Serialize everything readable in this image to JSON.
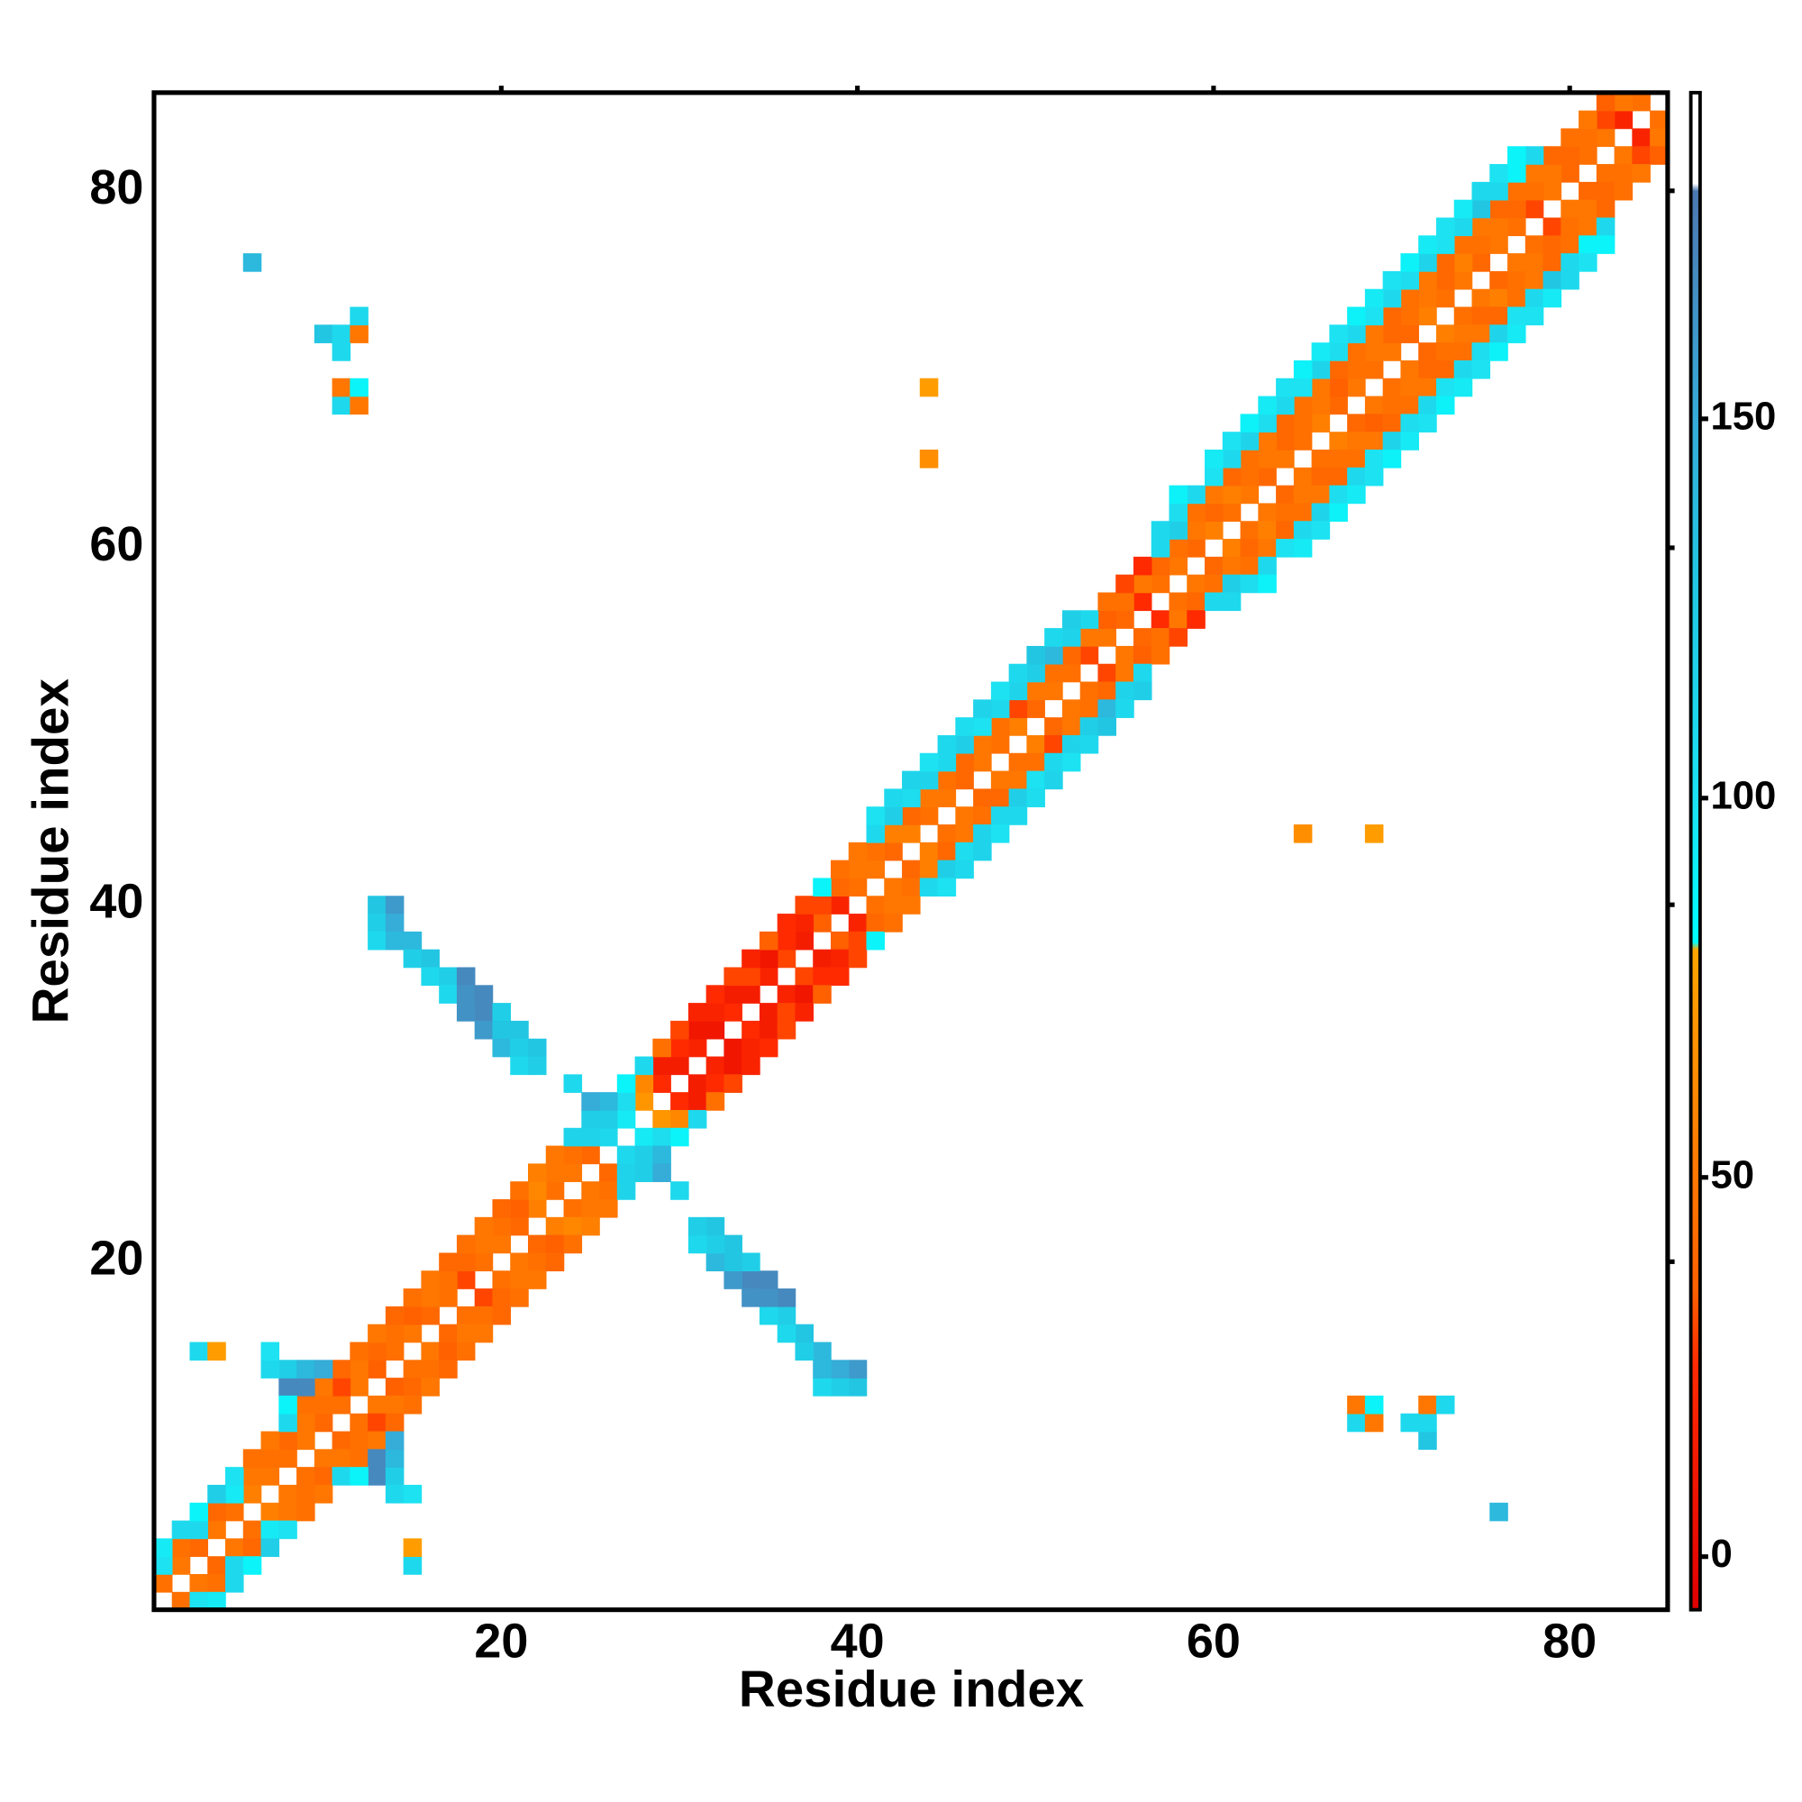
{
  "chart_data": {
    "type": "heatmap",
    "xlabel": "Residue index",
    "ylabel": "Residue index",
    "xlim": [
      0.5,
      85.5
    ],
    "ylim": [
      0.5,
      85.5
    ],
    "xticks": [
      20,
      40,
      60,
      80
    ],
    "yticks": [
      20,
      40,
      60,
      80
    ],
    "symmetric": true,
    "clim": [
      -7,
      193
    ],
    "cticks": [
      0,
      50,
      100,
      150
    ],
    "colorscale": [
      [
        -7,
        "#e00000"
      ],
      [
        25,
        "#ff2a00"
      ],
      [
        35,
        "#ff6000"
      ],
      [
        55,
        "#ff7f00"
      ],
      [
        80,
        "#ffa500"
      ],
      [
        81,
        "#00ffff"
      ],
      [
        100,
        "#1ce2f2"
      ],
      [
        130,
        "#22c6e2"
      ],
      [
        150,
        "#36acd8"
      ],
      [
        175,
        "#4a80b8"
      ],
      [
        180,
        "#4a78b0"
      ],
      [
        181,
        "#ffffff"
      ],
      [
        193,
        "#ffffff"
      ]
    ],
    "cells": [
      [
        1,
        2,
        45
      ],
      [
        2,
        3,
        50
      ],
      [
        3,
        4,
        40
      ],
      [
        4,
        5,
        50
      ],
      [
        5,
        6,
        45
      ],
      [
        6,
        7,
        55
      ],
      [
        7,
        8,
        50
      ],
      [
        8,
        9,
        45
      ],
      [
        9,
        10,
        50
      ],
      [
        10,
        11,
        40
      ],
      [
        11,
        12,
        45
      ],
      [
        12,
        13,
        50
      ],
      [
        13,
        14,
        35
      ],
      [
        14,
        15,
        45
      ],
      [
        15,
        16,
        50
      ],
      [
        16,
        17,
        40
      ],
      [
        17,
        18,
        45
      ],
      [
        18,
        19,
        30
      ],
      [
        19,
        20,
        45
      ],
      [
        20,
        21,
        50
      ],
      [
        21,
        22,
        40
      ],
      [
        22,
        23,
        55
      ],
      [
        23,
        24,
        45
      ],
      [
        24,
        25,
        50
      ],
      [
        25,
        26,
        40
      ],
      [
        26,
        27,
        110
      ],
      [
        27,
        28,
        95
      ],
      [
        28,
        29,
        70
      ],
      [
        29,
        30,
        25
      ],
      [
        30,
        31,
        15
      ],
      [
        31,
        32,
        20
      ],
      [
        32,
        33,
        10
      ],
      [
        33,
        34,
        25
      ],
      [
        34,
        35,
        15
      ],
      [
        35,
        36,
        20
      ],
      [
        36,
        37,
        30
      ],
      [
        37,
        38,
        15
      ],
      [
        38,
        39,
        35
      ],
      [
        39,
        40,
        20
      ],
      [
        40,
        41,
        45
      ],
      [
        41,
        42,
        50
      ],
      [
        42,
        43,
        40
      ],
      [
        43,
        44,
        55
      ],
      [
        44,
        45,
        45
      ],
      [
        45,
        46,
        50
      ],
      [
        46,
        47,
        40
      ],
      [
        47,
        48,
        50
      ],
      [
        48,
        49,
        45
      ],
      [
        49,
        50,
        55
      ],
      [
        50,
        51,
        40
      ],
      [
        51,
        52,
        50
      ],
      [
        52,
        53,
        45
      ],
      [
        53,
        54,
        30
      ],
      [
        54,
        55,
        50
      ],
      [
        55,
        56,
        40
      ],
      [
        56,
        57,
        25
      ],
      [
        57,
        58,
        45
      ],
      [
        58,
        59,
        50
      ],
      [
        59,
        60,
        40
      ],
      [
        60,
        61,
        55
      ],
      [
        61,
        62,
        45
      ],
      [
        62,
        63,
        50
      ],
      [
        63,
        64,
        40
      ],
      [
        64,
        65,
        50
      ],
      [
        65,
        66,
        45
      ],
      [
        66,
        67,
        55
      ],
      [
        67,
        68,
        40
      ],
      [
        68,
        69,
        50
      ],
      [
        69,
        70,
        45
      ],
      [
        70,
        71,
        50
      ],
      [
        71,
        72,
        40
      ],
      [
        72,
        73,
        55
      ],
      [
        73,
        74,
        45
      ],
      [
        74,
        75,
        50
      ],
      [
        75,
        76,
        40
      ],
      [
        76,
        77,
        50
      ],
      [
        77,
        78,
        45
      ],
      [
        78,
        79,
        30
      ],
      [
        79,
        80,
        50
      ],
      [
        80,
        81,
        40
      ],
      [
        81,
        82,
        45
      ],
      [
        82,
        83,
        50
      ],
      [
        83,
        84,
        20
      ],
      [
        84,
        85,
        45
      ],
      [
        1,
        3,
        100
      ],
      [
        2,
        4,
        45
      ],
      [
        3,
        5,
        110
      ],
      [
        4,
        6,
        40
      ],
      [
        5,
        7,
        95
      ],
      [
        6,
        8,
        50
      ],
      [
        7,
        9,
        45
      ],
      [
        8,
        10,
        40
      ],
      [
        9,
        11,
        50
      ],
      [
        10,
        12,
        45
      ],
      [
        11,
        13,
        30
      ],
      [
        12,
        14,
        50
      ],
      [
        13,
        15,
        40
      ],
      [
        14,
        16,
        45
      ],
      [
        15,
        17,
        35
      ],
      [
        16,
        18,
        50
      ],
      [
        17,
        19,
        45
      ],
      [
        18,
        20,
        40
      ],
      [
        19,
        21,
        50
      ],
      [
        20,
        22,
        45
      ],
      [
        21,
        23,
        35
      ],
      [
        22,
        24,
        60
      ],
      [
        23,
        25,
        50
      ],
      [
        24,
        26,
        45
      ],
      [
        25,
        27,
        115
      ],
      [
        26,
        28,
        120
      ],
      [
        27,
        29,
        105
      ],
      [
        28,
        30,
        60
      ],
      [
        29,
        31,
        15
      ],
      [
        30,
        32,
        25
      ],
      [
        31,
        33,
        10
      ],
      [
        32,
        34,
        20
      ],
      [
        33,
        35,
        15
      ],
      [
        34,
        36,
        30
      ],
      [
        35,
        37,
        10
      ],
      [
        36,
        38,
        25
      ],
      [
        37,
        39,
        20
      ],
      [
        38,
        40,
        30
      ],
      [
        39,
        41,
        40
      ],
      [
        40,
        42,
        50
      ],
      [
        41,
        43,
        45
      ],
      [
        42,
        44,
        55
      ],
      [
        43,
        45,
        40
      ],
      [
        44,
        46,
        50
      ],
      [
        45,
        47,
        45
      ],
      [
        46,
        48,
        40
      ],
      [
        47,
        49,
        50
      ],
      [
        48,
        50,
        45
      ],
      [
        49,
        51,
        30
      ],
      [
        50,
        52,
        50
      ],
      [
        51,
        53,
        45
      ],
      [
        52,
        54,
        40
      ],
      [
        53,
        55,
        50
      ],
      [
        54,
        56,
        35
      ],
      [
        55,
        57,
        45
      ],
      [
        56,
        58,
        50
      ],
      [
        57,
        59,
        40
      ],
      [
        58,
        60,
        45
      ],
      [
        59,
        61,
        50
      ],
      [
        60,
        62,
        40
      ],
      [
        61,
        63,
        55
      ],
      [
        62,
        64,
        45
      ],
      [
        63,
        65,
        50
      ],
      [
        64,
        66,
        40
      ],
      [
        65,
        67,
        45
      ],
      [
        66,
        68,
        50
      ],
      [
        67,
        69,
        35
      ],
      [
        68,
        70,
        45
      ],
      [
        69,
        71,
        50
      ],
      [
        70,
        72,
        40
      ],
      [
        71,
        73,
        45
      ],
      [
        72,
        74,
        50
      ],
      [
        73,
        75,
        40
      ],
      [
        74,
        76,
        55
      ],
      [
        75,
        77,
        45
      ],
      [
        76,
        78,
        50
      ],
      [
        77,
        79,
        40
      ],
      [
        78,
        80,
        45
      ],
      [
        79,
        81,
        50
      ],
      [
        80,
        82,
        40
      ],
      [
        81,
        83,
        45
      ],
      [
        82,
        84,
        30
      ],
      [
        83,
        85,
        50
      ],
      [
        1,
        4,
        95
      ],
      [
        2,
        5,
        110
      ],
      [
        3,
        6,
        88
      ],
      [
        4,
        7,
        120
      ],
      [
        5,
        8,
        100
      ],
      [
        6,
        9,
        45
      ],
      [
        7,
        10,
        50
      ],
      [
        8,
        11,
        110
      ],
      [
        9,
        12,
        45
      ],
      [
        10,
        13,
        50
      ],
      [
        11,
        14,
        40
      ],
      [
        12,
        15,
        45
      ],
      [
        13,
        16,
        50
      ],
      [
        14,
        17,
        40
      ],
      [
        15,
        18,
        45
      ],
      [
        16,
        19,
        50
      ],
      [
        17,
        20,
        40
      ],
      [
        18,
        21,
        45
      ],
      [
        19,
        22,
        50
      ],
      [
        20,
        23,
        40
      ],
      [
        21,
        24,
        45
      ],
      [
        22,
        25,
        55
      ],
      [
        23,
        26,
        50
      ],
      [
        24,
        27,
        115
      ],
      [
        25,
        28,
        120
      ],
      [
        26,
        29,
        140
      ],
      [
        27,
        30,
        88
      ],
      [
        28,
        31,
        110
      ],
      [
        29,
        32,
        45
      ],
      [
        30,
        33,
        30
      ],
      [
        31,
        34,
        20
      ],
      [
        32,
        35,
        25
      ],
      [
        33,
        36,
        30
      ],
      [
        34,
        37,
        20
      ],
      [
        35,
        38,
        35
      ],
      [
        36,
        39,
        25
      ],
      [
        37,
        40,
        30
      ],
      [
        38,
        41,
        88
      ],
      [
        39,
        42,
        45
      ],
      [
        40,
        43,
        50
      ],
      [
        41,
        44,
        110
      ],
      [
        42,
        45,
        120
      ],
      [
        43,
        46,
        105
      ],
      [
        44,
        47,
        115
      ],
      [
        45,
        48,
        110
      ],
      [
        46,
        49,
        120
      ],
      [
        47,
        50,
        100
      ],
      [
        48,
        51,
        110
      ],
      [
        49,
        52,
        115
      ],
      [
        50,
        53,
        120
      ],
      [
        51,
        54,
        140
      ],
      [
        52,
        55,
        115
      ],
      [
        53,
        56,
        110
      ],
      [
        54,
        57,
        45
      ],
      [
        55,
        58,
        30
      ],
      [
        56,
        59,
        25
      ],
      [
        57,
        60,
        110
      ],
      [
        58,
        61,
        120
      ],
      [
        59,
        62,
        45
      ],
      [
        60,
        63,
        50
      ],
      [
        61,
        64,
        40
      ],
      [
        62,
        65,
        45
      ],
      [
        63,
        66,
        50
      ],
      [
        64,
        67,
        40
      ],
      [
        65,
        68,
        45
      ],
      [
        66,
        69,
        50
      ],
      [
        67,
        70,
        40
      ],
      [
        68,
        71,
        45
      ],
      [
        69,
        72,
        50
      ],
      [
        70,
        73,
        40
      ],
      [
        71,
        74,
        45
      ],
      [
        72,
        75,
        50
      ],
      [
        73,
        76,
        40
      ],
      [
        74,
        77,
        45
      ],
      [
        75,
        78,
        50
      ],
      [
        76,
        79,
        40
      ],
      [
        77,
        80,
        45
      ],
      [
        78,
        81,
        50
      ],
      [
        79,
        82,
        40
      ],
      [
        80,
        83,
        45
      ],
      [
        81,
        84,
        50
      ],
      [
        82,
        85,
        35
      ],
      [
        41,
        45,
        100
      ],
      [
        42,
        46,
        110
      ],
      [
        43,
        47,
        115
      ],
      [
        44,
        48,
        100
      ],
      [
        45,
        49,
        110
      ],
      [
        46,
        50,
        105
      ],
      [
        47,
        51,
        115
      ],
      [
        48,
        52,
        100
      ],
      [
        49,
        53,
        110
      ],
      [
        50,
        54,
        130
      ],
      [
        51,
        55,
        110
      ],
      [
        52,
        56,
        120
      ],
      [
        57,
        61,
        110
      ],
      [
        58,
        62,
        105
      ],
      [
        59,
        63,
        110
      ],
      [
        60,
        64,
        100
      ],
      [
        61,
        65,
        110
      ],
      [
        62,
        66,
        115
      ],
      [
        63,
        67,
        105
      ],
      [
        64,
        68,
        110
      ],
      [
        65,
        69,
        100
      ],
      [
        66,
        70,
        115
      ],
      [
        67,
        71,
        105
      ],
      [
        68,
        72,
        110
      ],
      [
        69,
        73,
        100
      ],
      [
        70,
        74,
        110
      ],
      [
        71,
        75,
        105
      ],
      [
        72,
        76,
        115
      ],
      [
        73,
        77,
        100
      ],
      [
        74,
        78,
        110
      ],
      [
        75,
        79,
        130
      ],
      [
        76,
        80,
        110
      ],
      [
        77,
        81,
        88
      ],
      [
        78,
        82,
        110
      ],
      [
        58,
        63,
        90
      ],
      [
        60,
        65,
        95
      ],
      [
        61,
        66,
        100
      ],
      [
        62,
        67,
        90
      ],
      [
        63,
        68,
        95
      ],
      [
        64,
        69,
        100
      ],
      [
        65,
        70,
        90
      ],
      [
        66,
        71,
        95
      ],
      [
        67,
        72,
        100
      ],
      [
        68,
        73,
        90
      ],
      [
        69,
        74,
        95
      ],
      [
        70,
        75,
        100
      ],
      [
        71,
        76,
        90
      ],
      [
        72,
        77,
        95
      ],
      [
        73,
        78,
        100
      ],
      [
        74,
        79,
        95
      ],
      [
        75,
        80,
        110
      ],
      [
        76,
        81,
        100
      ],
      [
        77,
        82,
        88
      ],
      [
        8,
        13,
        170
      ],
      [
        9,
        13,
        170
      ],
      [
        8,
        14,
        120
      ],
      [
        9,
        14,
        140
      ],
      [
        10,
        14,
        150
      ],
      [
        7,
        14,
        110
      ],
      [
        8,
        12,
        88
      ],
      [
        7,
        15,
        100
      ],
      [
        13,
        40,
        130
      ],
      [
        14,
        40,
        160
      ],
      [
        13,
        39,
        120
      ],
      [
        14,
        39,
        150
      ],
      [
        13,
        38,
        110
      ],
      [
        14,
        38,
        140
      ],
      [
        15,
        38,
        140
      ],
      [
        15,
        37,
        120
      ],
      [
        16,
        37,
        130
      ],
      [
        16,
        36,
        110
      ],
      [
        17,
        36,
        120
      ],
      [
        18,
        36,
        170
      ],
      [
        17,
        35,
        110
      ],
      [
        18,
        35,
        165
      ],
      [
        19,
        35,
        170
      ],
      [
        19,
        34,
        170
      ],
      [
        20,
        34,
        120
      ],
      [
        18,
        34,
        165
      ],
      [
        19,
        33,
        160
      ],
      [
        20,
        33,
        130
      ],
      [
        21,
        33,
        130
      ],
      [
        20,
        32,
        140
      ],
      [
        21,
        32,
        120
      ],
      [
        22,
        32,
        130
      ],
      [
        21,
        31,
        110
      ],
      [
        22,
        31,
        120
      ],
      [
        25,
        29,
        150
      ],
      [
        24,
        30,
        110
      ],
      [
        6,
        76,
        140
      ],
      [
        10,
        72,
        130
      ],
      [
        11,
        72,
        110
      ],
      [
        12,
        72,
        50
      ],
      [
        12,
        73,
        110
      ],
      [
        11,
        71,
        110
      ],
      [
        11,
        68,
        110
      ],
      [
        12,
        68,
        50
      ],
      [
        11,
        69,
        50
      ],
      [
        12,
        69,
        88
      ],
      [
        44,
        69,
        75
      ],
      [
        44,
        65,
        65
      ],
      [
        3,
        15,
        110
      ],
      [
        4,
        15,
        75
      ]
    ]
  }
}
